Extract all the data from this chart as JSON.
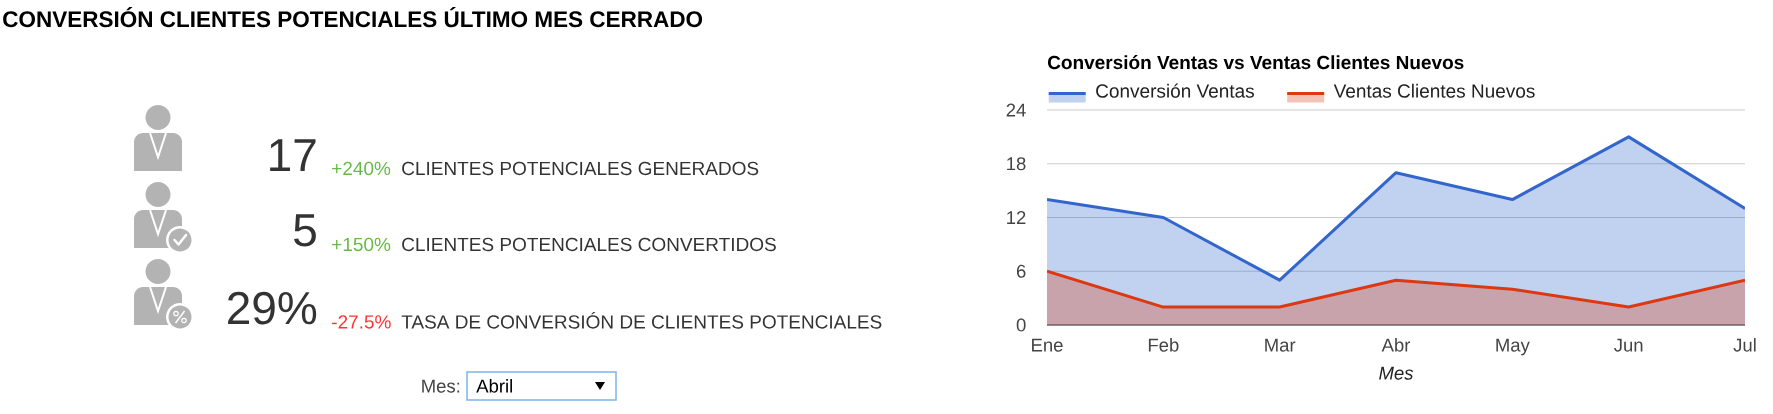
{
  "chart_data": [
    {
      "type": "other",
      "title": "CONVERSIÓN CLIENTES POTENCIALES ÚLTIMO MES CERRADO",
      "annotations": [
        "17",
        "+240%",
        "CLIENTES POTENCIALES GENERADOS",
        "5",
        "+150%",
        "CLIENTES POTENCIALES CONVERTIDOS",
        "29%",
        "-27.5%",
        "TASA DE CONVERSIÓN DE CLIENTES POTENCIALES",
        "Mes:",
        "Abril"
      ]
    },
    {
      "type": "area",
      "title": "Conversión Ventas vs Ventas Clientes Nuevos",
      "xlabel": "Mes",
      "categories": [
        "Ene",
        "Feb",
        "Mar",
        "Abr",
        "May",
        "Jun",
        "Jul"
      ],
      "series": [
        {
          "name": "Conversión Ventas",
          "color": "#3366cc",
          "values": [
            14,
            12,
            5,
            17,
            14,
            21,
            13
          ]
        },
        {
          "name": "Ventas Clientes Nuevos",
          "color": "#dc3912",
          "values": [
            6,
            2,
            2,
            5,
            4,
            2,
            5
          ]
        }
      ],
      "ylim": [
        0,
        24
      ],
      "yticks": [
        0,
        6,
        12,
        18,
        24
      ],
      "grid": "y",
      "legend": "top"
    }
  ]
}
